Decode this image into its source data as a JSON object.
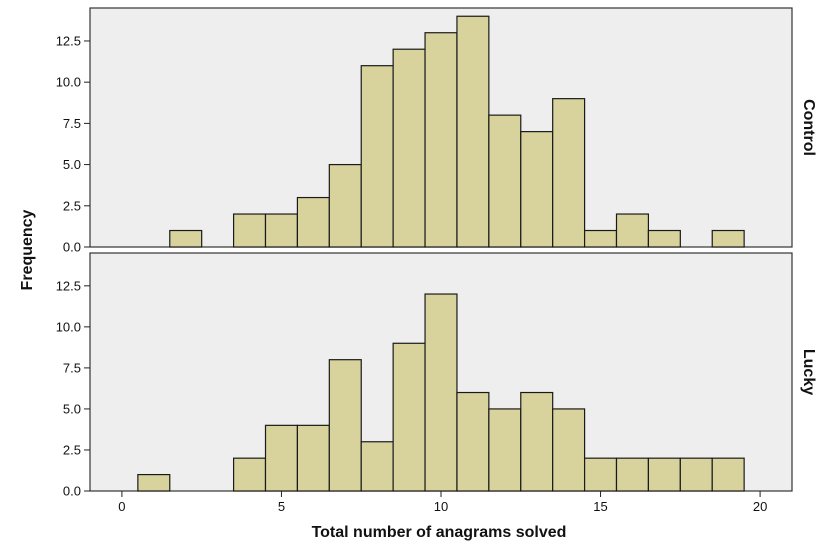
{
  "chart_data": {
    "type": "bar",
    "subtype": "histogram-paneled",
    "xlabel": "Total number of anagrams solved",
    "ylabel": "Frequency",
    "xlim": [
      -1,
      21
    ],
    "xticks": [
      0,
      5,
      10,
      15,
      20
    ],
    "ylim": [
      0,
      14.5
    ],
    "yticks": [
      0.0,
      2.5,
      5.0,
      7.5,
      10.0,
      12.5
    ],
    "bin_width": 1,
    "grid": false,
    "bar_color": "#d8d39c",
    "bar_edge_color": "#1a1a1a",
    "panel_background": "#eeeeee",
    "panels": [
      {
        "label": "Control",
        "bins": [
          {
            "x": 2,
            "count": 1
          },
          {
            "x": 4,
            "count": 2
          },
          {
            "x": 5,
            "count": 2
          },
          {
            "x": 6,
            "count": 3
          },
          {
            "x": 7,
            "count": 5
          },
          {
            "x": 8,
            "count": 11
          },
          {
            "x": 9,
            "count": 12
          },
          {
            "x": 10,
            "count": 13
          },
          {
            "x": 11,
            "count": 14
          },
          {
            "x": 12,
            "count": 8
          },
          {
            "x": 13,
            "count": 7
          },
          {
            "x": 14,
            "count": 9
          },
          {
            "x": 15,
            "count": 1
          },
          {
            "x": 16,
            "count": 2
          },
          {
            "x": 17,
            "count": 1
          },
          {
            "x": 19,
            "count": 1
          }
        ]
      },
      {
        "label": "Lucky",
        "bins": [
          {
            "x": 1,
            "count": 1
          },
          {
            "x": 4,
            "count": 2
          },
          {
            "x": 5,
            "count": 4
          },
          {
            "x": 6,
            "count": 4
          },
          {
            "x": 7,
            "count": 8
          },
          {
            "x": 8,
            "count": 3
          },
          {
            "x": 9,
            "count": 9
          },
          {
            "x": 10,
            "count": 12
          },
          {
            "x": 11,
            "count": 6
          },
          {
            "x": 12,
            "count": 5
          },
          {
            "x": 13,
            "count": 6
          },
          {
            "x": 14,
            "count": 5
          },
          {
            "x": 15,
            "count": 2
          },
          {
            "x": 16,
            "count": 2
          },
          {
            "x": 17,
            "count": 2
          },
          {
            "x": 18,
            "count": 2
          },
          {
            "x": 19,
            "count": 2
          }
        ]
      }
    ]
  }
}
